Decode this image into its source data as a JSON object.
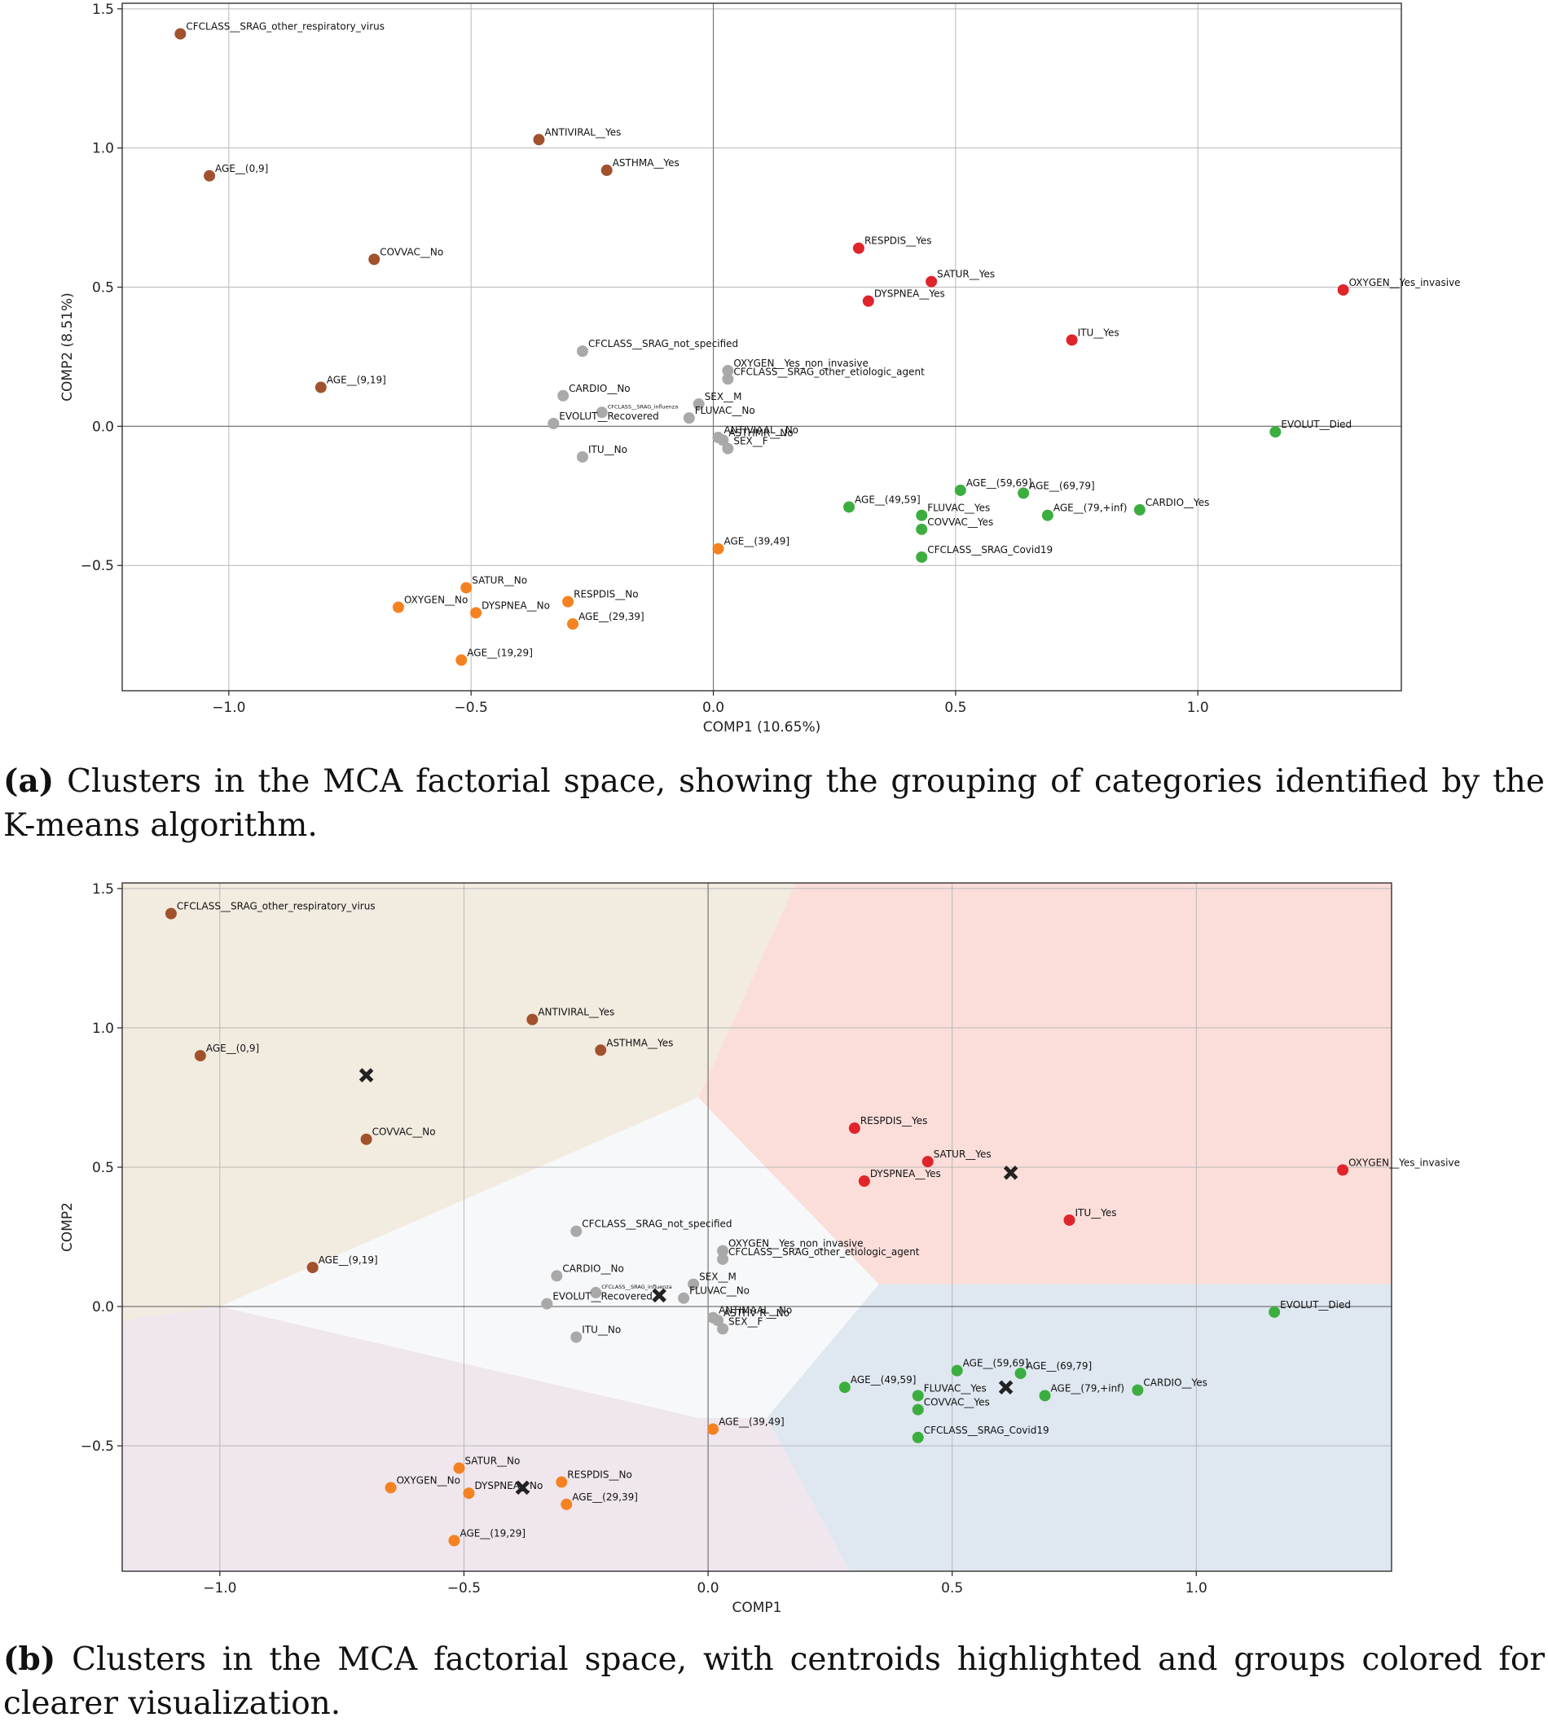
{
  "chart_data": [
    {
      "type": "scatter",
      "panel": "a",
      "xlabel": "COMP1 (10.65%)",
      "ylabel": "COMP2 (8.51%)",
      "xlim": [
        -1.22,
        1.42
      ],
      "ylim": [
        -0.95,
        1.52
      ],
      "xticks": [
        -1.0,
        -0.5,
        0.0,
        0.5,
        1.0
      ],
      "yticks": [
        -0.5,
        0.0,
        0.5,
        1.0,
        1.5
      ],
      "xtick_labels": [
        "−1.0",
        "−0.5",
        "0.0",
        "0.5",
        "1.0"
      ],
      "ytick_labels": [
        "−0.5",
        "0.0",
        "0.5",
        "1.0",
        "1.5"
      ],
      "grid": true,
      "zero_lines": true,
      "caption_label": "(a)",
      "caption_text": " Clusters in the MCA factorial space, showing the grouping of categories identified by the K-means algorithm."
    },
    {
      "type": "scatter",
      "panel": "b",
      "xlabel": "COMP1",
      "ylabel": "COMP2",
      "xlim": [
        -1.2,
        1.4
      ],
      "ylim": [
        -0.95,
        1.52
      ],
      "xticks": [
        -1.0,
        -0.5,
        0.0,
        0.5,
        1.0
      ],
      "yticks": [
        -0.5,
        0.0,
        0.5,
        1.0,
        1.5
      ],
      "xtick_labels": [
        "−1.0",
        "−0.5",
        "0.0",
        "0.5",
        "1.0"
      ],
      "ytick_labels": [
        "−0.5",
        "0.0",
        "0.5",
        "1.0",
        "1.5"
      ],
      "grid": true,
      "zero_lines": true,
      "centroid_marker": "x",
      "centroids": [
        {
          "cluster": "brown",
          "x": -0.7,
          "y": 0.83
        },
        {
          "cluster": "gray",
          "x": -0.1,
          "y": 0.04
        },
        {
          "cluster": "red",
          "x": 0.62,
          "y": 0.48
        },
        {
          "cluster": "green",
          "x": 0.61,
          "y": -0.29
        },
        {
          "cluster": "orange",
          "x": -0.38,
          "y": -0.65
        }
      ],
      "caption_label": "(b)",
      "caption_text": " Clusters in the MCA factorial space, with centroids highlighted and groups colored for clearer visualization."
    }
  ],
  "colors": {
    "brown": "#a0522d",
    "gray": "#a9a9a9",
    "red": "#e0242b",
    "green": "#3cae3f",
    "orange": "#f58221",
    "region_brown": "#f2ebdf",
    "region_gray": "#f7f8fa",
    "region_red": "#fbded9",
    "region_green": "#dfe7f0",
    "region_orange": "#efe6ee"
  },
  "points": [
    {
      "label": "CFCLASS__SRAG_other_respiratory_virus",
      "x": -1.1,
      "y": 1.41,
      "cluster": "brown"
    },
    {
      "label": "ANTIVIRAL__Yes",
      "x": -0.36,
      "y": 1.03,
      "cluster": "brown"
    },
    {
      "label": "ASTHMA__Yes",
      "x": -0.22,
      "y": 0.92,
      "cluster": "brown"
    },
    {
      "label": "AGE__(0,9]",
      "x": -1.04,
      "y": 0.9,
      "cluster": "brown"
    },
    {
      "label": "COVVAC__No",
      "x": -0.7,
      "y": 0.6,
      "cluster": "brown"
    },
    {
      "label": "AGE__(9,19]",
      "x": -0.81,
      "y": 0.14,
      "cluster": "brown"
    },
    {
      "label": "RESPDIS__Yes",
      "x": 0.3,
      "y": 0.64,
      "cluster": "red"
    },
    {
      "label": "SATUR__Yes",
      "x": 0.45,
      "y": 0.52,
      "cluster": "red"
    },
    {
      "label": "DYSPNEA__Yes",
      "x": 0.32,
      "y": 0.45,
      "cluster": "red"
    },
    {
      "label": "OXYGEN__Yes_invasive",
      "x": 1.3,
      "y": 0.49,
      "cluster": "red"
    },
    {
      "label": "ITU__Yes",
      "x": 0.74,
      "y": 0.31,
      "cluster": "red"
    },
    {
      "label": "CFCLASS__SRAG_not_specified",
      "x": -0.27,
      "y": 0.27,
      "cluster": "gray"
    },
    {
      "label": "OXYGEN__Yes_non_invasive",
      "x": 0.03,
      "y": 0.2,
      "cluster": "gray"
    },
    {
      "label": "CFCLASS__SRAG_other_etiologic_agent",
      "x": 0.03,
      "y": 0.17,
      "cluster": "gray"
    },
    {
      "label": "CARDIO__No",
      "x": -0.31,
      "y": 0.11,
      "cluster": "gray"
    },
    {
      "label": "SEX__M",
      "x": -0.03,
      "y": 0.08,
      "cluster": "gray"
    },
    {
      "label": "CFCLASS__SRAG_influenza",
      "x": -0.23,
      "y": 0.05,
      "cluster": "gray",
      "small": true
    },
    {
      "label": "FLUVAC__No",
      "x": -0.05,
      "y": 0.03,
      "cluster": "gray"
    },
    {
      "label": "EVOLUT__Recovered",
      "x": -0.33,
      "y": 0.01,
      "cluster": "gray"
    },
    {
      "label": "ANTIVIAAL__No",
      "x": 0.01,
      "y": -0.04,
      "cluster": "gray"
    },
    {
      "label": "ASTHMR__No",
      "x": 0.02,
      "y": -0.05,
      "cluster": "gray"
    },
    {
      "label": "SEX__F",
      "x": 0.03,
      "y": -0.08,
      "cluster": "gray"
    },
    {
      "label": "ITU__No",
      "x": -0.27,
      "y": -0.11,
      "cluster": "gray"
    },
    {
      "label": "EVOLUT__Died",
      "x": 1.16,
      "y": -0.02,
      "cluster": "green"
    },
    {
      "label": "AGE__(59,69]",
      "x": 0.51,
      "y": -0.23,
      "cluster": "green"
    },
    {
      "label": "AGE__(69,79]",
      "x": 0.64,
      "y": -0.24,
      "cluster": "green"
    },
    {
      "label": "AGE__(79,+inf)",
      "x": 0.69,
      "y": -0.32,
      "cluster": "green"
    },
    {
      "label": "CARDIO__Yes",
      "x": 0.88,
      "y": -0.3,
      "cluster": "green"
    },
    {
      "label": "AGE__(49,59]",
      "x": 0.28,
      "y": -0.29,
      "cluster": "green"
    },
    {
      "label": "FLUVAC__Yes",
      "x": 0.43,
      "y": -0.32,
      "cluster": "green"
    },
    {
      "label": "COVVAC__Yes",
      "x": 0.43,
      "y": -0.37,
      "cluster": "green"
    },
    {
      "label": "CFCLASS__SRAG_Covid19",
      "x": 0.43,
      "y": -0.47,
      "cluster": "green"
    },
    {
      "label": "AGE__(39,49]",
      "x": 0.01,
      "y": -0.44,
      "cluster": "orange"
    },
    {
      "label": "SATUR__No",
      "x": -0.51,
      "y": -0.58,
      "cluster": "orange"
    },
    {
      "label": "RESPDIS__No",
      "x": -0.3,
      "y": -0.63,
      "cluster": "orange"
    },
    {
      "label": "OXYGEN__No",
      "x": -0.65,
      "y": -0.65,
      "cluster": "orange"
    },
    {
      "label": "DYSPNEA__No",
      "x": -0.49,
      "y": -0.67,
      "cluster": "orange"
    },
    {
      "label": "AGE__(29,39]",
      "x": -0.29,
      "y": -0.71,
      "cluster": "orange"
    },
    {
      "label": "AGE__(19,29]",
      "x": -0.52,
      "y": -0.84,
      "cluster": "orange"
    }
  ],
  "panel_b_label_overrides": {
    "ANTIVIAAL__No": "ANTIMAAL__No",
    "ASTHMR__No": "ASTHV R__No"
  },
  "regions": {
    "brown": [
      [
        -1.2,
        1.52
      ],
      [
        0.18,
        1.52
      ],
      [
        -0.02,
        0.75
      ],
      [
        -1.0,
        0.0
      ],
      [
        -1.2,
        -0.05
      ]
    ],
    "gray": [
      [
        -1.0,
        0.0
      ],
      [
        -0.02,
        0.75
      ],
      [
        0.35,
        0.08
      ],
      [
        0.12,
        -0.4
      ],
      [
        -0.02,
        -0.4
      ]
    ],
    "red": [
      [
        0.18,
        1.52
      ],
      [
        1.4,
        1.52
      ],
      [
        1.4,
        0.08
      ],
      [
        0.35,
        0.08
      ],
      [
        -0.02,
        0.75
      ]
    ],
    "green": [
      [
        0.35,
        0.08
      ],
      [
        1.4,
        0.08
      ],
      [
        1.4,
        -0.95
      ],
      [
        0.29,
        -0.95
      ],
      [
        0.12,
        -0.4
      ]
    ],
    "orange": [
      [
        -1.2,
        -0.05
      ],
      [
        -1.0,
        0.0
      ],
      [
        -0.02,
        -0.4
      ],
      [
        0.12,
        -0.4
      ],
      [
        0.29,
        -0.95
      ],
      [
        -1.2,
        -0.95
      ]
    ]
  }
}
